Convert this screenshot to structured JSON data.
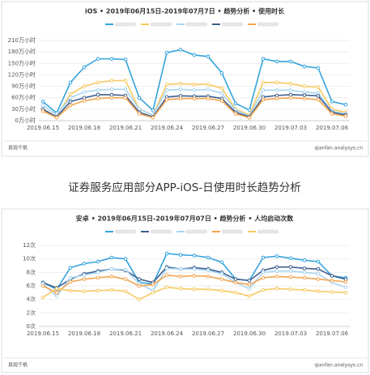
{
  "chart_data": [
    {
      "type": "line",
      "title": "iOS • 2019年06月15日-2019年07月7日 • 趋势分析 • 使用时长",
      "source": "易观千帆",
      "watermark": "qianfan.analysys.cn",
      "categories": [
        "2019.06.15",
        null,
        null,
        "2019.06.18",
        null,
        null,
        "2019.06.21",
        null,
        null,
        "2019.06.24",
        null,
        null,
        "2019.06.27",
        null,
        null,
        "2019.06.30",
        null,
        null,
        "2019.07.03",
        null,
        null,
        "2019.07.06",
        null
      ],
      "ylim": [
        0,
        210
      ],
      "yticks": [
        {
          "value": 0,
          "label": "0万小时"
        },
        {
          "value": 30,
          "label": "30万小时"
        },
        {
          "value": 60,
          "label": "60万小时"
        },
        {
          "value": 90,
          "label": "90万小时"
        },
        {
          "value": 120,
          "label": "120万小时"
        },
        {
          "value": 150,
          "label": "150万小时"
        },
        {
          "value": 180,
          "label": "180万小时"
        },
        {
          "value": 210,
          "label": "210万小时"
        }
      ],
      "grid": true,
      "series": [
        {
          "color": "#35a3dc",
          "values": [
            50,
            20,
            100,
            140,
            162,
            162,
            160,
            60,
            27,
            178,
            186,
            172,
            168,
            125,
            45,
            28,
            162,
            155,
            155,
            142,
            138,
            50,
            42
          ]
        },
        {
          "color": "#f6c85f",
          "values": [
            30,
            10,
            70,
            90,
            100,
            105,
            105,
            30,
            15,
            95,
            97,
            95,
            95,
            85,
            30,
            15,
            100,
            100,
            97,
            90,
            88,
            30,
            22
          ]
        },
        {
          "color": "#a9d5f0",
          "values": [
            40,
            15,
            60,
            75,
            80,
            82,
            82,
            30,
            15,
            80,
            82,
            80,
            82,
            72,
            28,
            12,
            80,
            80,
            80,
            75,
            72,
            25,
            18
          ]
        },
        {
          "color": "#3f5f8f",
          "values": [
            30,
            10,
            50,
            60,
            68,
            68,
            66,
            22,
            10,
            62,
            65,
            64,
            64,
            58,
            22,
            10,
            62,
            66,
            68,
            67,
            65,
            22,
            15
          ]
        },
        {
          "color": "#f2a44f",
          "values": [
            25,
            8,
            40,
            52,
            58,
            60,
            60,
            18,
            8,
            55,
            58,
            58,
            58,
            52,
            18,
            8,
            55,
            58,
            60,
            58,
            55,
            18,
            12
          ]
        }
      ]
    },
    {
      "type": "line",
      "title": "安卓 • 2019年06月15日-2019年07月07日 • 趋势分析 • 人均启动次数",
      "source": "易观千帆",
      "watermark": "qianfan.analysys.cn",
      "categories": [
        "2019.06.15",
        null,
        null,
        "2019.06.18",
        null,
        null,
        "2019.06.21",
        null,
        null,
        "2019.06.24",
        null,
        null,
        "2019.06.27",
        null,
        null,
        "2019.06.30",
        null,
        null,
        "2019.07.03",
        null,
        null,
        "2019.07.06",
        null
      ],
      "ylim": [
        0,
        12
      ],
      "yticks": [
        {
          "value": 0,
          "label": "0次"
        },
        {
          "value": 2,
          "label": "2次"
        },
        {
          "value": 4,
          "label": "4次"
        },
        {
          "value": 6,
          "label": "6次"
        },
        {
          "value": 8,
          "label": "8次"
        },
        {
          "value": 10,
          "label": "10次"
        },
        {
          "value": 12,
          "label": "12次"
        }
      ],
      "grid": true,
      "series": [
        {
          "color": "#35a3dc",
          "values": [
            6.5,
            5.5,
            8.7,
            9.3,
            9.6,
            10.2,
            10,
            6.5,
            6.3,
            10.8,
            10.6,
            10.5,
            10.2,
            9.5,
            7,
            6.8,
            10.2,
            10.4,
            10.1,
            9.8,
            9.6,
            7.5,
            7.2
          ]
        },
        {
          "color": "#3f5f8f",
          "values": [
            6.5,
            5.7,
            7,
            7.8,
            8.2,
            8.5,
            8.3,
            7,
            6.5,
            8.8,
            8.5,
            8.7,
            8.5,
            8,
            7,
            6.8,
            8.3,
            8.8,
            8.8,
            8.6,
            8.5,
            7.5,
            7
          ]
        },
        {
          "color": "#a9d5f0",
          "values": [
            6.3,
            4.5,
            7.2,
            7.6,
            8,
            8.5,
            8.4,
            6.3,
            5.3,
            8.6,
            8.5,
            8.5,
            8.3,
            7.8,
            6.5,
            5.6,
            8,
            8.2,
            8.2,
            8,
            7.8,
            6.5,
            5.8
          ]
        },
        {
          "color": "#f2a44f",
          "values": [
            6,
            5,
            6.6,
            7,
            7.2,
            7.4,
            7,
            6,
            6.2,
            7.6,
            7.4,
            7.5,
            7.4,
            7,
            6.5,
            6.2,
            7.2,
            7.4,
            7.3,
            7.2,
            7,
            6.8,
            6.6
          ]
        },
        {
          "color": "#f6c85f",
          "values": [
            4.3,
            5.6,
            5.3,
            5.2,
            5.3,
            5.4,
            5.2,
            4,
            5,
            5.8,
            5.6,
            5.5,
            5.5,
            5.3,
            5,
            4.5,
            5.4,
            5.6,
            5.5,
            5.4,
            5.2,
            5.1,
            5
          ]
        }
      ]
    }
  ],
  "caption": "证券服务应用部分APP-iOS-日使用时长趋势分析"
}
